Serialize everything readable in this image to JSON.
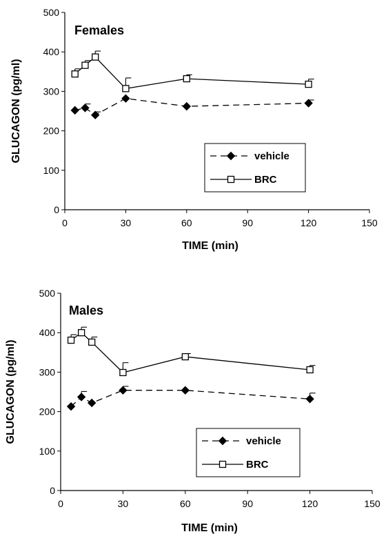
{
  "chart_data": [
    {
      "type": "line",
      "title": "Females",
      "xlabel": "TIME (min)",
      "ylabel": "GLUCAGON (pg/ml)",
      "xlim": [
        0,
        150
      ],
      "ylim": [
        0,
        500
      ],
      "xticks": [
        0,
        30,
        60,
        90,
        120,
        150
      ],
      "yticks": [
        0,
        100,
        200,
        300,
        400,
        500
      ],
      "grid": false,
      "legend_position": "lower-right",
      "series": [
        {
          "name": "vehicle",
          "line_style": "dashed",
          "marker": "filled-diamond",
          "x": [
            5,
            10,
            15,
            30,
            60,
            120
          ],
          "y": [
            252,
            258,
            240,
            282,
            262,
            270
          ],
          "error": [
            0,
            10,
            8,
            0,
            0,
            8
          ]
        },
        {
          "name": "BRC",
          "line_style": "solid",
          "marker": "open-square",
          "x": [
            5,
            10,
            15,
            30,
            60,
            120
          ],
          "y": [
            344,
            366,
            387,
            307,
            332,
            318
          ],
          "error": [
            13,
            12,
            15,
            27,
            10,
            13
          ]
        }
      ]
    },
    {
      "type": "line",
      "title": "Males",
      "xlabel": "TIME (min)",
      "ylabel": "GLUCAGON (pg/ml)",
      "xlim": [
        0,
        150
      ],
      "ylim": [
        0,
        500
      ],
      "xticks": [
        0,
        30,
        60,
        90,
        120,
        150
      ],
      "yticks": [
        0,
        100,
        200,
        300,
        400,
        500
      ],
      "grid": false,
      "legend_position": "lower-right",
      "series": [
        {
          "name": "vehicle",
          "line_style": "dashed",
          "marker": "filled-diamond",
          "x": [
            5,
            10,
            15,
            30,
            60,
            120
          ],
          "y": [
            213,
            237,
            222,
            254,
            254,
            232
          ],
          "error": [
            0,
            14,
            0,
            10,
            0,
            15
          ]
        },
        {
          "name": "BRC",
          "line_style": "solid",
          "marker": "open-square",
          "x": [
            5,
            10,
            15,
            30,
            60,
            120
          ],
          "y": [
            381,
            400,
            376,
            299,
            339,
            306
          ],
          "error": [
            14,
            14,
            13,
            25,
            8,
            11
          ]
        }
      ]
    }
  ]
}
